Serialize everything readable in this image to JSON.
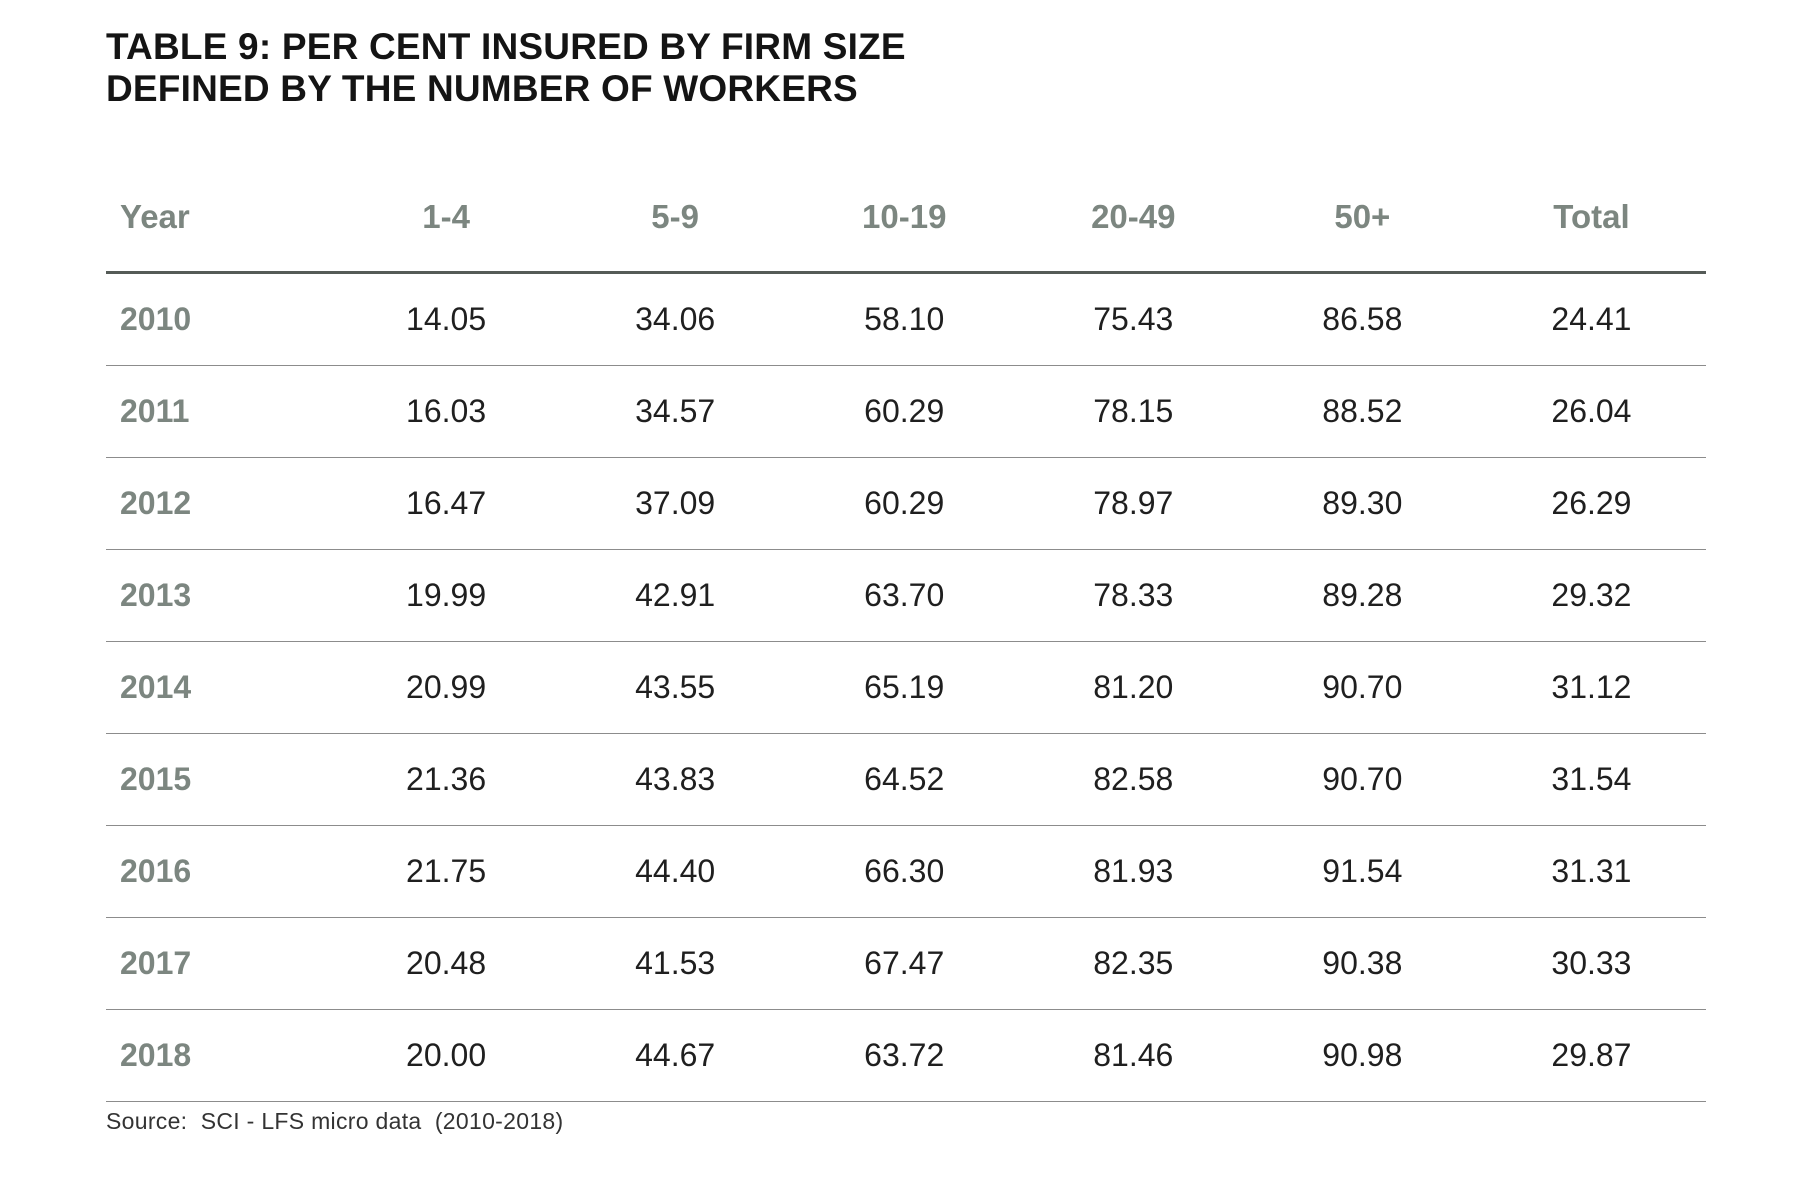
{
  "document": {
    "title_line1": "TABLE 9: PER CENT INSURED BY FIRM SIZE",
    "title_line2": "DEFINED BY THE NUMBER OF WORKERS",
    "source": "Source:  SCI - LFS micro data  (2010-2018)"
  },
  "table": {
    "headers": [
      "Year",
      "1-4",
      "5-9",
      "10-19",
      "20-49",
      "50+",
      "Total"
    ],
    "rows": [
      [
        "2010",
        "14.05",
        "34.06",
        "58.10",
        "75.43",
        "86.58",
        "24.41"
      ],
      [
        "2011",
        "16.03",
        "34.57",
        "60.29",
        "78.15",
        "88.52",
        "26.04"
      ],
      [
        "2012",
        "16.47",
        "37.09",
        "60.29",
        "78.97",
        "89.30",
        "26.29"
      ],
      [
        "2013",
        "19.99",
        "42.91",
        "63.70",
        "78.33",
        "89.28",
        "29.32"
      ],
      [
        "2014",
        "20.99",
        "43.55",
        "65.19",
        "81.20",
        "90.70",
        "31.12"
      ],
      [
        "2015",
        "21.36",
        "43.83",
        "64.52",
        "82.58",
        "90.70",
        "31.54"
      ],
      [
        "2016",
        "21.75",
        "44.40",
        "66.30",
        "81.93",
        "91.54",
        "31.31"
      ],
      [
        "2017",
        "20.48",
        "41.53",
        "67.47",
        "82.35",
        "90.38",
        "30.33"
      ],
      [
        "2018",
        "20.00",
        "44.67",
        "63.72",
        "81.46",
        "90.98",
        "29.87"
      ]
    ]
  },
  "colors": {
    "header_text": "#7c8680",
    "body_text": "#1f1f1f",
    "title_text": "#141414",
    "rule_heavy": "#555b57",
    "rule_light": "#8c8c8c"
  }
}
